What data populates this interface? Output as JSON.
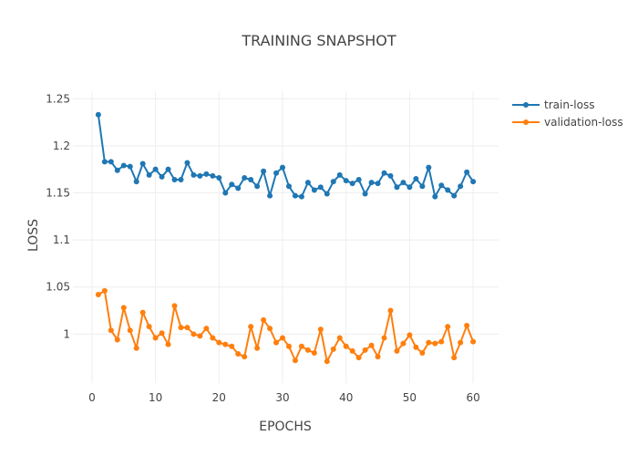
{
  "chart_data": {
    "type": "line",
    "title": "TRAINING SNAPSHOT",
    "xlabel": "EPOCHS",
    "ylabel": "LOSS",
    "xlim": [
      -3,
      64
    ],
    "ylim": [
      0.948,
      1.258
    ],
    "xticks": [
      0,
      10,
      20,
      30,
      40,
      50,
      60
    ],
    "xtick_labels": [
      "0",
      "10",
      "20",
      "30",
      "40",
      "50",
      "60"
    ],
    "yticks": [
      1.0,
      1.05,
      1.1,
      1.15,
      1.2,
      1.25
    ],
    "ytick_labels": [
      "1",
      "1.05",
      "1.1",
      "1.15",
      "1.2",
      "1.25"
    ],
    "grid": true,
    "legend_position": "top-right",
    "x": [
      1,
      2,
      3,
      4,
      5,
      6,
      7,
      8,
      9,
      10,
      11,
      12,
      13,
      14,
      15,
      16,
      17,
      18,
      19,
      20,
      21,
      22,
      23,
      24,
      25,
      26,
      27,
      28,
      29,
      30,
      31,
      32,
      33,
      34,
      35,
      36,
      37,
      38,
      39,
      40,
      41,
      42,
      43,
      44,
      45,
      46,
      47,
      48,
      49,
      50,
      51,
      52,
      53,
      54,
      55,
      56,
      57,
      58,
      59,
      60
    ],
    "series": [
      {
        "name": "train-loss",
        "color": "#1f77b4",
        "values": [
          1.233,
          1.183,
          1.183,
          1.174,
          1.179,
          1.178,
          1.162,
          1.181,
          1.169,
          1.175,
          1.167,
          1.175,
          1.164,
          1.164,
          1.182,
          1.169,
          1.168,
          1.17,
          1.168,
          1.166,
          1.15,
          1.159,
          1.155,
          1.166,
          1.164,
          1.157,
          1.173,
          1.147,
          1.171,
          1.177,
          1.157,
          1.147,
          1.146,
          1.161,
          1.153,
          1.156,
          1.149,
          1.162,
          1.169,
          1.163,
          1.16,
          1.164,
          1.149,
          1.161,
          1.16,
          1.171,
          1.168,
          1.156,
          1.161,
          1.156,
          1.165,
          1.157,
          1.177,
          1.146,
          1.158,
          1.153,
          1.147,
          1.157,
          1.172,
          1.162
        ]
      },
      {
        "name": "validation-loss",
        "color": "#ff7f0e",
        "values": [
          1.042,
          1.046,
          1.004,
          0.994,
          1.028,
          1.004,
          0.985,
          1.023,
          1.008,
          0.996,
          1.001,
          0.989,
          1.03,
          1.007,
          1.007,
          1.0,
          0.998,
          1.006,
          0.996,
          0.991,
          0.989,
          0.987,
          0.979,
          0.976,
          1.008,
          0.985,
          1.015,
          1.006,
          0.991,
          0.996,
          0.987,
          0.972,
          0.987,
          0.983,
          0.98,
          1.005,
          0.971,
          0.984,
          0.996,
          0.987,
          0.982,
          0.975,
          0.983,
          0.988,
          0.976,
          0.996,
          1.025,
          0.982,
          0.99,
          0.999,
          0.986,
          0.98,
          0.991,
          0.99,
          0.992,
          1.008,
          0.975,
          0.991,
          1.009,
          0.992
        ]
      }
    ]
  }
}
